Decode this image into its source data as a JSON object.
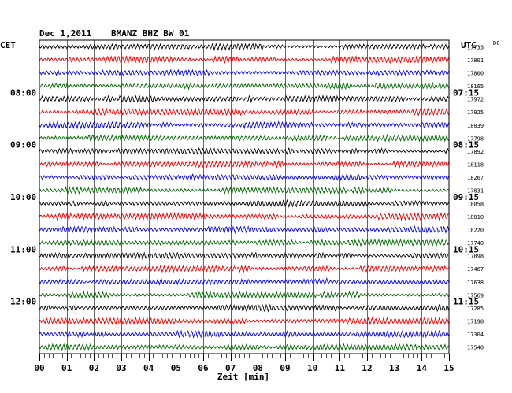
{
  "header": {
    "date": "Dec 1,2011",
    "station": "BMANZ BHZ BW 01"
  },
  "axis_labels": {
    "left_tz": "CET",
    "right_tz": "UTC",
    "count_unit": "DC",
    "xlabel": "Zeit [min]"
  },
  "colors": {
    "trace_cycle": [
      "#000000",
      "#e00000",
      "#0000d0",
      "#006400"
    ],
    "grid": "#000000"
  },
  "chart_data": {
    "type": "line",
    "title": "Dec 1,2011   BMANZ BHZ BW 01",
    "xlabel": "Zeit [min]",
    "xlim": [
      0,
      15
    ],
    "x_ticks": [
      "00",
      "01",
      "02",
      "03",
      "04",
      "05",
      "06",
      "07",
      "08",
      "09",
      "10",
      "11",
      "12",
      "13",
      "14",
      "15"
    ],
    "left_hour_labels": [
      "08:00",
      "09:00",
      "10:00",
      "11:00",
      "12:00"
    ],
    "right_hour_labels": [
      "07:15",
      "08:15",
      "09:15",
      "10:15",
      "11:15"
    ],
    "hour_label_rows": [
      4,
      8,
      12,
      16,
      20
    ],
    "trace_counts": [
      17733,
      17801,
      17800,
      18165,
      17972,
      17925,
      18039,
      17798,
      17892,
      18118,
      18267,
      17831,
      18058,
      18010,
      18220,
      17740,
      17898,
      17467,
      17638,
      17569,
      17285,
      17198,
      17304,
      17540
    ],
    "grid": true
  }
}
